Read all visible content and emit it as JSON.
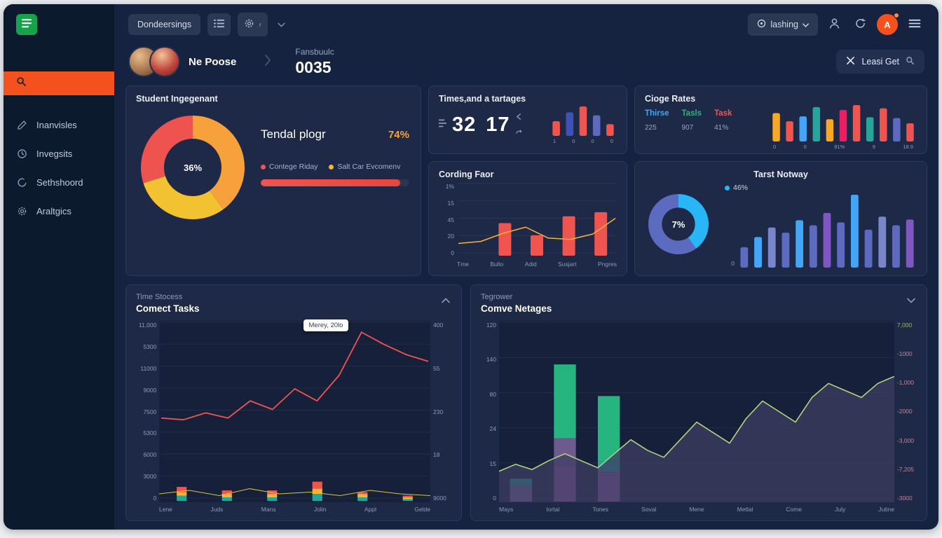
{
  "colors": {
    "accent_orange": "#f4511e",
    "coral": "#f0544f",
    "amber": "#f9b234",
    "green": "#26b47f",
    "blue": "#42a5f5",
    "indigo": "#5c6bc0",
    "sidebar_bg": "#0c1a2e",
    "main_bg": "#152240",
    "card_bg": "#1e2947",
    "logo_green": "#17a34a"
  },
  "sidebar": {
    "logo_icon": "table-grid-icon",
    "search_icon": "search-icon",
    "items": [
      {
        "icon": "pen-icon",
        "label": "Inanvisles"
      },
      {
        "icon": "clock-icon",
        "label": "Invegsits"
      },
      {
        "icon": "ring-icon",
        "label": "Sethshoord"
      },
      {
        "icon": "gear-icon",
        "label": "Araltgics"
      }
    ]
  },
  "topbar": {
    "primary_button_label": "Dondeersings",
    "gear_suffix": "r",
    "user_dropdown_label": "lashing",
    "avatar_letter": "A",
    "icons": [
      "list-icon",
      "gear-icon",
      "chevron-down-icon",
      "notification-icon",
      "user-icon",
      "refresh-icon",
      "menu-icon"
    ]
  },
  "header": {
    "user_name": "Ne Poose",
    "section_label": "Fansbuulc",
    "section_value": "0035",
    "action_button_label": "Leasi Get",
    "action_icons": [
      "scissors-icon",
      "search-icon"
    ]
  },
  "cards": {
    "student": {
      "title": "Student Ingegenant",
      "metric_label": "Tendal plogr",
      "metric_value": "74%",
      "legend": [
        {
          "label": "Contege Riday",
          "color": "#f0544f"
        },
        {
          "label": "Salt Car Evcomenv",
          "color": "#f9b234"
        }
      ],
      "progress_pct": 94,
      "chart_data": {
        "type": "donut",
        "center_label": "36%",
        "segments": [
          {
            "value": 40,
            "color": "#f6a13c"
          },
          {
            "value": 30,
            "color": "#f2c230"
          },
          {
            "value": 30,
            "color": "#ef5350"
          }
        ]
      }
    },
    "times": {
      "title": "Times,and a tartages",
      "value_a": "32",
      "value_b": "17",
      "chart_data": {
        "type": "bars",
        "values": [
          5,
          8,
          10,
          7,
          4
        ],
        "colors": [
          "#f0544f",
          "#3f51b5",
          "#f0544f",
          "#5c6bc0",
          "#f0544f"
        ],
        "axis_labels": [
          "1",
          "0",
          "0",
          "0"
        ]
      }
    },
    "cording": {
      "title": "Cording Faor",
      "chart_data": {
        "type": "bars-line",
        "categories": [
          "Tme",
          "Bullo",
          "Adid",
          "Susjart",
          "Pngres"
        ],
        "y_ticks": [
          "1%",
          "15",
          "45",
          "20",
          "0"
        ],
        "bar_values": [
          0,
          48,
          30,
          58,
          64
        ],
        "bar_color": "#f0544f",
        "line_values": [
          18,
          21,
          33,
          42,
          26,
          24,
          32,
          55
        ],
        "line_color": "#f9b234"
      }
    },
    "cioge": {
      "title": "Cioge Rates",
      "stats": [
        {
          "label": "Thirse",
          "value": "225",
          "color": "#42a5f5"
        },
        {
          "label": "Tasls",
          "value": "907",
          "color": "#26b47f"
        },
        {
          "label": "Task",
          "value": "41%",
          "color": "#f0544f"
        }
      ],
      "chart_data": {
        "type": "bars",
        "values": [
          70,
          50,
          62,
          85,
          55,
          78,
          90,
          60,
          82,
          58,
          45
        ],
        "colors": [
          "#f9a825",
          "#f0544f",
          "#42a5f5",
          "#26a69a",
          "#f9a825",
          "#e91e63",
          "#f0544f",
          "#26a69a",
          "#f0544f",
          "#5c6bc0",
          "#ef5350"
        ],
        "axis_labels": [
          "0",
          "0",
          "81%",
          "9",
          "18.9"
        ]
      }
    },
    "tarst": {
      "title": "Tarst Notway",
      "legend_label": "46%",
      "legend_color": "#29b6f6",
      "donut": {
        "type": "donut",
        "center_label": "7%",
        "segments": [
          {
            "value": 40,
            "color": "#29b6f6"
          },
          {
            "value": 60,
            "color": "#5c6bc0"
          }
        ]
      },
      "chart_data": {
        "type": "bars",
        "values": [
          28,
          42,
          55,
          48,
          65,
          58,
          75,
          62,
          100,
          52,
          70,
          58,
          66
        ],
        "colors": [
          "#5c6bc0",
          "#42a5f5",
          "#7986cb",
          "#5c6bc0",
          "#42a5f5",
          "#5c6bc0",
          "#7e57c2",
          "#5c6bc0",
          "#42a5f5",
          "#5c6bc0",
          "#7986cb",
          "#5c6bc0",
          "#7e57c2"
        ],
        "y_left": [
          "0"
        ]
      }
    },
    "tasks": {
      "subtitle": "Time Stocess",
      "title": "Comect Tasks",
      "tooltip": "Merey, 20lo",
      "chart_data": {
        "type": "line-bars",
        "categories": [
          "Lene",
          "Juds",
          "Mans",
          "Jolin",
          "Appl",
          "Gelde"
        ],
        "y_left": [
          "11,000",
          "5300",
          "11000",
          "9000",
          "7500",
          "5300",
          "6000",
          "3000",
          "0"
        ],
        "y_right": [
          "400",
          "55",
          "230",
          "18",
          "9000"
        ],
        "line_color": "#f0544f",
        "line_values": [
          45,
          44,
          48,
          45,
          55,
          50,
          62,
          55,
          70,
          95,
          88,
          82,
          78
        ],
        "bar_stacks": [
          [
            3,
            2,
            3
          ],
          [
            2,
            2,
            2
          ],
          [
            2,
            2,
            2
          ],
          [
            4,
            3,
            4
          ],
          [
            2,
            2,
            1
          ],
          [
            1,
            1,
            1
          ]
        ],
        "bar_colors": [
          "#26a69a",
          "#f9b234",
          "#f0544f"
        ],
        "bottom_line_values": [
          4,
          6,
          3,
          7,
          4,
          5,
          3,
          6,
          4,
          3
        ],
        "bottom_line_color": "#d8c63f"
      }
    },
    "tegrower": {
      "subtitle": "Tegrower",
      "title": "Comve Netages",
      "chart_data": {
        "type": "stack-area",
        "categories": [
          "Mays",
          "Iortal",
          "Tones",
          "Soval",
          "Mene",
          "Metlal",
          "Come",
          "July",
          "Jutine"
        ],
        "y_left": [
          "120",
          "140",
          "80",
          "24",
          "15",
          "0"
        ],
        "y_right": [
          "7,000",
          "-1000",
          "-1,000",
          "-2000",
          "-3,000",
          "-7,205",
          "-3000"
        ],
        "right_first_green": true,
        "stacks": [
          {
            "index": 0,
            "segments": [
              {
                "value": 9,
                "color": "#7e6b9e"
              },
              {
                "value": 4,
                "color": "#26a69a"
              }
            ]
          },
          {
            "index": 1,
            "segments": [
              {
                "value": 20,
                "color": "#8a5ca8"
              },
              {
                "value": 16,
                "color": "#6d5b8e"
              },
              {
                "value": 42,
                "color": "#26b47f"
              }
            ]
          },
          {
            "index": 2,
            "segments": [
              {
                "value": 17,
                "color": "#8a5ca8"
              },
              {
                "value": 6,
                "color": "#26a69a"
              },
              {
                "value": 37,
                "color": "#26b47f"
              }
            ]
          }
        ],
        "area_values": [
          16,
          20,
          17,
          22,
          26,
          22,
          18,
          26,
          34,
          28,
          24,
          34,
          44,
          38,
          32,
          46,
          56,
          50,
          44,
          58,
          66,
          62,
          58,
          66,
          70
        ],
        "area_fill": "#3f3d63",
        "line_color": "#aed581"
      }
    }
  }
}
